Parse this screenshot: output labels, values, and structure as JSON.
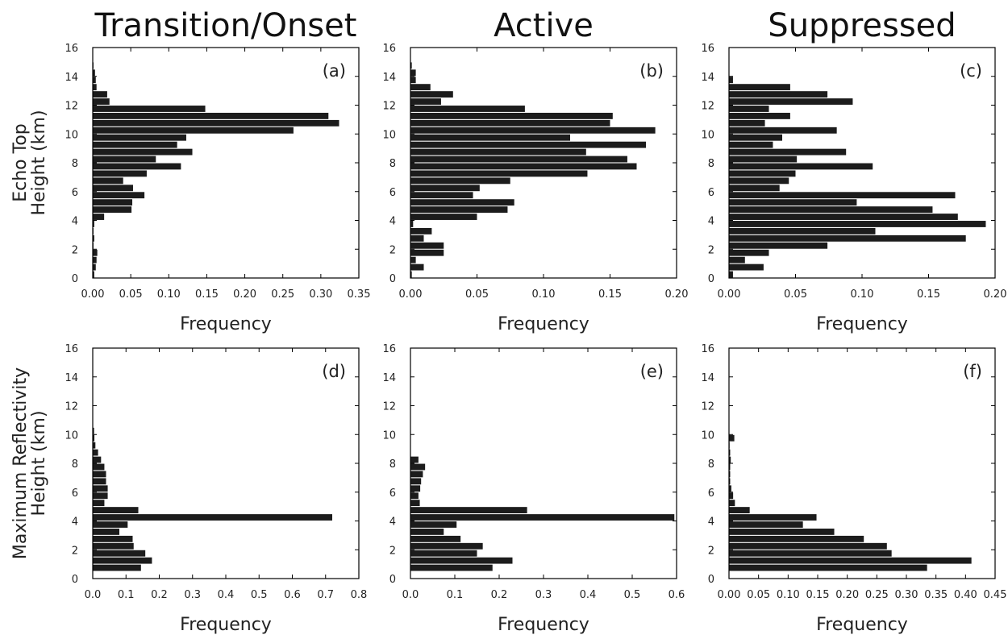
{
  "figure": {
    "column_titles": [
      "Transition/Onset",
      "Active",
      "Suppressed"
    ],
    "row_labels": [
      [
        "Echo Top",
        "Height (km)"
      ],
      [
        "Maximum Reflectivity",
        "Height (km)"
      ]
    ],
    "colors": {
      "bar": "#1c1c1c",
      "frame": "#000000",
      "background": "#ffffff"
    }
  },
  "chart_data": [
    {
      "type": "bar",
      "orientation": "horizontal",
      "panel_label": "(a)",
      "column_title": "Transition/Onset",
      "ylabel": "Echo Top Height (km)",
      "xlabel": "Frequency",
      "xlim": [
        0,
        0.35
      ],
      "ylim": [
        0,
        16
      ],
      "xticks": [
        "0.00",
        "0.05",
        "0.10",
        "0.15",
        "0.20",
        "0.25",
        "0.30",
        "0.35"
      ],
      "yticks": [
        "0",
        "2",
        "4",
        "6",
        "8",
        "10",
        "12",
        "14",
        "16"
      ],
      "bin_width_km": 0.5,
      "y": [
        0.25,
        0.75,
        1.25,
        1.75,
        2.25,
        2.75,
        3.25,
        3.75,
        4.25,
        4.75,
        5.25,
        5.75,
        6.25,
        6.75,
        7.25,
        7.75,
        8.25,
        8.75,
        9.25,
        9.75,
        10.25,
        10.75,
        11.25,
        11.75,
        12.25,
        12.75,
        13.25,
        13.75,
        14.25,
        14.75
      ],
      "values": [
        0.002,
        0.004,
        0.005,
        0.006,
        0.001,
        0.002,
        0.001,
        0.002,
        0.015,
        0.051,
        0.052,
        0.068,
        0.053,
        0.04,
        0.071,
        0.116,
        0.083,
        0.131,
        0.111,
        0.123,
        0.264,
        0.324,
        0.31,
        0.148,
        0.022,
        0.019,
        0.005,
        0.004,
        0.003,
        0.001
      ]
    },
    {
      "type": "bar",
      "orientation": "horizontal",
      "panel_label": "(b)",
      "column_title": "Active",
      "ylabel": "Echo Top Height (km)",
      "xlabel": "Frequency",
      "xlim": [
        0,
        0.2
      ],
      "ylim": [
        0,
        16
      ],
      "xticks": [
        "0.00",
        "0.05",
        "0.10",
        "0.15",
        "0.20"
      ],
      "yticks": [
        "0",
        "2",
        "4",
        "6",
        "8",
        "10",
        "12",
        "14",
        "16"
      ],
      "bin_width_km": 0.5,
      "y": [
        0.25,
        0.75,
        1.25,
        1.75,
        2.25,
        2.75,
        3.25,
        3.75,
        4.25,
        4.75,
        5.25,
        5.75,
        6.25,
        6.75,
        7.25,
        7.75,
        8.25,
        8.75,
        9.25,
        9.75,
        10.25,
        10.75,
        11.25,
        11.75,
        12.25,
        12.75,
        13.25,
        13.75,
        14.25,
        14.75
      ],
      "values": [
        0.001,
        0.01,
        0.004,
        0.025,
        0.025,
        0.01,
        0.016,
        0.002,
        0.05,
        0.073,
        0.078,
        0.047,
        0.052,
        0.075,
        0.133,
        0.17,
        0.163,
        0.132,
        0.177,
        0.12,
        0.184,
        0.15,
        0.152,
        0.086,
        0.023,
        0.032,
        0.015,
        0.004,
        0.004,
        0.001
      ]
    },
    {
      "type": "bar",
      "orientation": "horizontal",
      "panel_label": "(c)",
      "column_title": "Suppressed",
      "ylabel": "Echo Top Height (km)",
      "xlabel": "Frequency",
      "xlim": [
        0,
        0.2
      ],
      "ylim": [
        0,
        16
      ],
      "xticks": [
        "0.00",
        "0.05",
        "0.10",
        "0.15",
        "0.20"
      ],
      "yticks": [
        "0",
        "2",
        "4",
        "6",
        "8",
        "10",
        "12",
        "14",
        "16"
      ],
      "bin_width_km": 0.5,
      "y": [
        0.25,
        0.75,
        1.25,
        1.75,
        2.25,
        2.75,
        3.25,
        3.75,
        4.25,
        4.75,
        5.25,
        5.75,
        6.25,
        6.75,
        7.25,
        7.75,
        8.25,
        8.75,
        9.25,
        9.75,
        10.25,
        10.75,
        11.25,
        11.75,
        12.25,
        12.75,
        13.25,
        13.75
      ],
      "values": [
        0.003,
        0.026,
        0.012,
        0.03,
        0.074,
        0.178,
        0.11,
        0.193,
        0.172,
        0.153,
        0.096,
        0.17,
        0.038,
        0.045,
        0.05,
        0.108,
        0.051,
        0.088,
        0.033,
        0.04,
        0.081,
        0.027,
        0.046,
        0.03,
        0.093,
        0.074,
        0.046,
        0.003
      ]
    },
    {
      "type": "bar",
      "orientation": "horizontal",
      "panel_label": "(d)",
      "column_title": "Transition/Onset",
      "ylabel": "Maximum Reflectivity Height (km)",
      "xlabel": "Frequency",
      "xlim": [
        0,
        0.8
      ],
      "ylim": [
        0,
        16
      ],
      "xticks": [
        "0.0",
        "0.1",
        "0.2",
        "0.3",
        "0.4",
        "0.5",
        "0.6",
        "0.7",
        "0.8"
      ],
      "yticks": [
        "0",
        "2",
        "4",
        "6",
        "8",
        "10",
        "12",
        "14",
        "16"
      ],
      "bin_width_km": 0.5,
      "y": [
        0.75,
        1.25,
        1.75,
        2.25,
        2.75,
        3.25,
        3.75,
        4.25,
        4.75,
        5.25,
        5.75,
        6.25,
        6.75,
        7.25,
        7.75,
        8.25,
        8.75,
        9.25,
        9.75,
        10.25
      ],
      "values": [
        0.145,
        0.178,
        0.158,
        0.123,
        0.12,
        0.08,
        0.105,
        0.72,
        0.137,
        0.035,
        0.045,
        0.045,
        0.04,
        0.04,
        0.035,
        0.025,
        0.016,
        0.008,
        0.005,
        0.004
      ]
    },
    {
      "type": "bar",
      "orientation": "horizontal",
      "panel_label": "(e)",
      "column_title": "Active",
      "ylabel": "Maximum Reflectivity Height (km)",
      "xlabel": "Frequency",
      "xlim": [
        0,
        0.6
      ],
      "ylim": [
        0,
        16
      ],
      "xticks": [
        "0.0",
        "0.1",
        "0.2",
        "0.3",
        "0.4",
        "0.5",
        "0.6"
      ],
      "yticks": [
        "0",
        "2",
        "4",
        "6",
        "8",
        "10",
        "12",
        "14",
        "16"
      ],
      "bin_width_km": 0.5,
      "y": [
        0.75,
        1.25,
        1.75,
        2.25,
        2.75,
        3.25,
        3.75,
        4.25,
        4.75,
        5.25,
        5.75,
        6.25,
        6.75,
        7.25,
        7.75,
        8.25
      ],
      "values": [
        0.185,
        0.23,
        0.15,
        0.163,
        0.113,
        0.075,
        0.104,
        0.595,
        0.263,
        0.021,
        0.018,
        0.022,
        0.024,
        0.028,
        0.033,
        0.018
      ]
    },
    {
      "type": "bar",
      "orientation": "horizontal",
      "panel_label": "(f)",
      "column_title": "Suppressed",
      "ylabel": "Maximum Reflectivity Height (km)",
      "xlabel": "Frequency",
      "xlim": [
        0,
        0.45
      ],
      "ylim": [
        0,
        16
      ],
      "xticks": [
        "0.00",
        "0.05",
        "0.10",
        "0.15",
        "0.20",
        "0.25",
        "0.30",
        "0.35",
        "0.40",
        "0.45"
      ],
      "yticks": [
        "0",
        "2",
        "4",
        "6",
        "8",
        "10",
        "12",
        "14",
        "16"
      ],
      "bin_width_km": 0.5,
      "y": [
        0.75,
        1.25,
        1.75,
        2.25,
        2.75,
        3.25,
        3.75,
        4.25,
        4.75,
        5.25,
        5.75,
        6.25,
        6.75,
        7.25,
        7.75,
        8.25,
        8.75,
        9.25,
        9.75
      ],
      "values": [
        0.335,
        0.41,
        0.275,
        0.267,
        0.228,
        0.178,
        0.125,
        0.148,
        0.035,
        0.01,
        0.007,
        0.004,
        0.002,
        0.002,
        0.002,
        0.003,
        0.002,
        0.001,
        0.009
      ]
    }
  ]
}
